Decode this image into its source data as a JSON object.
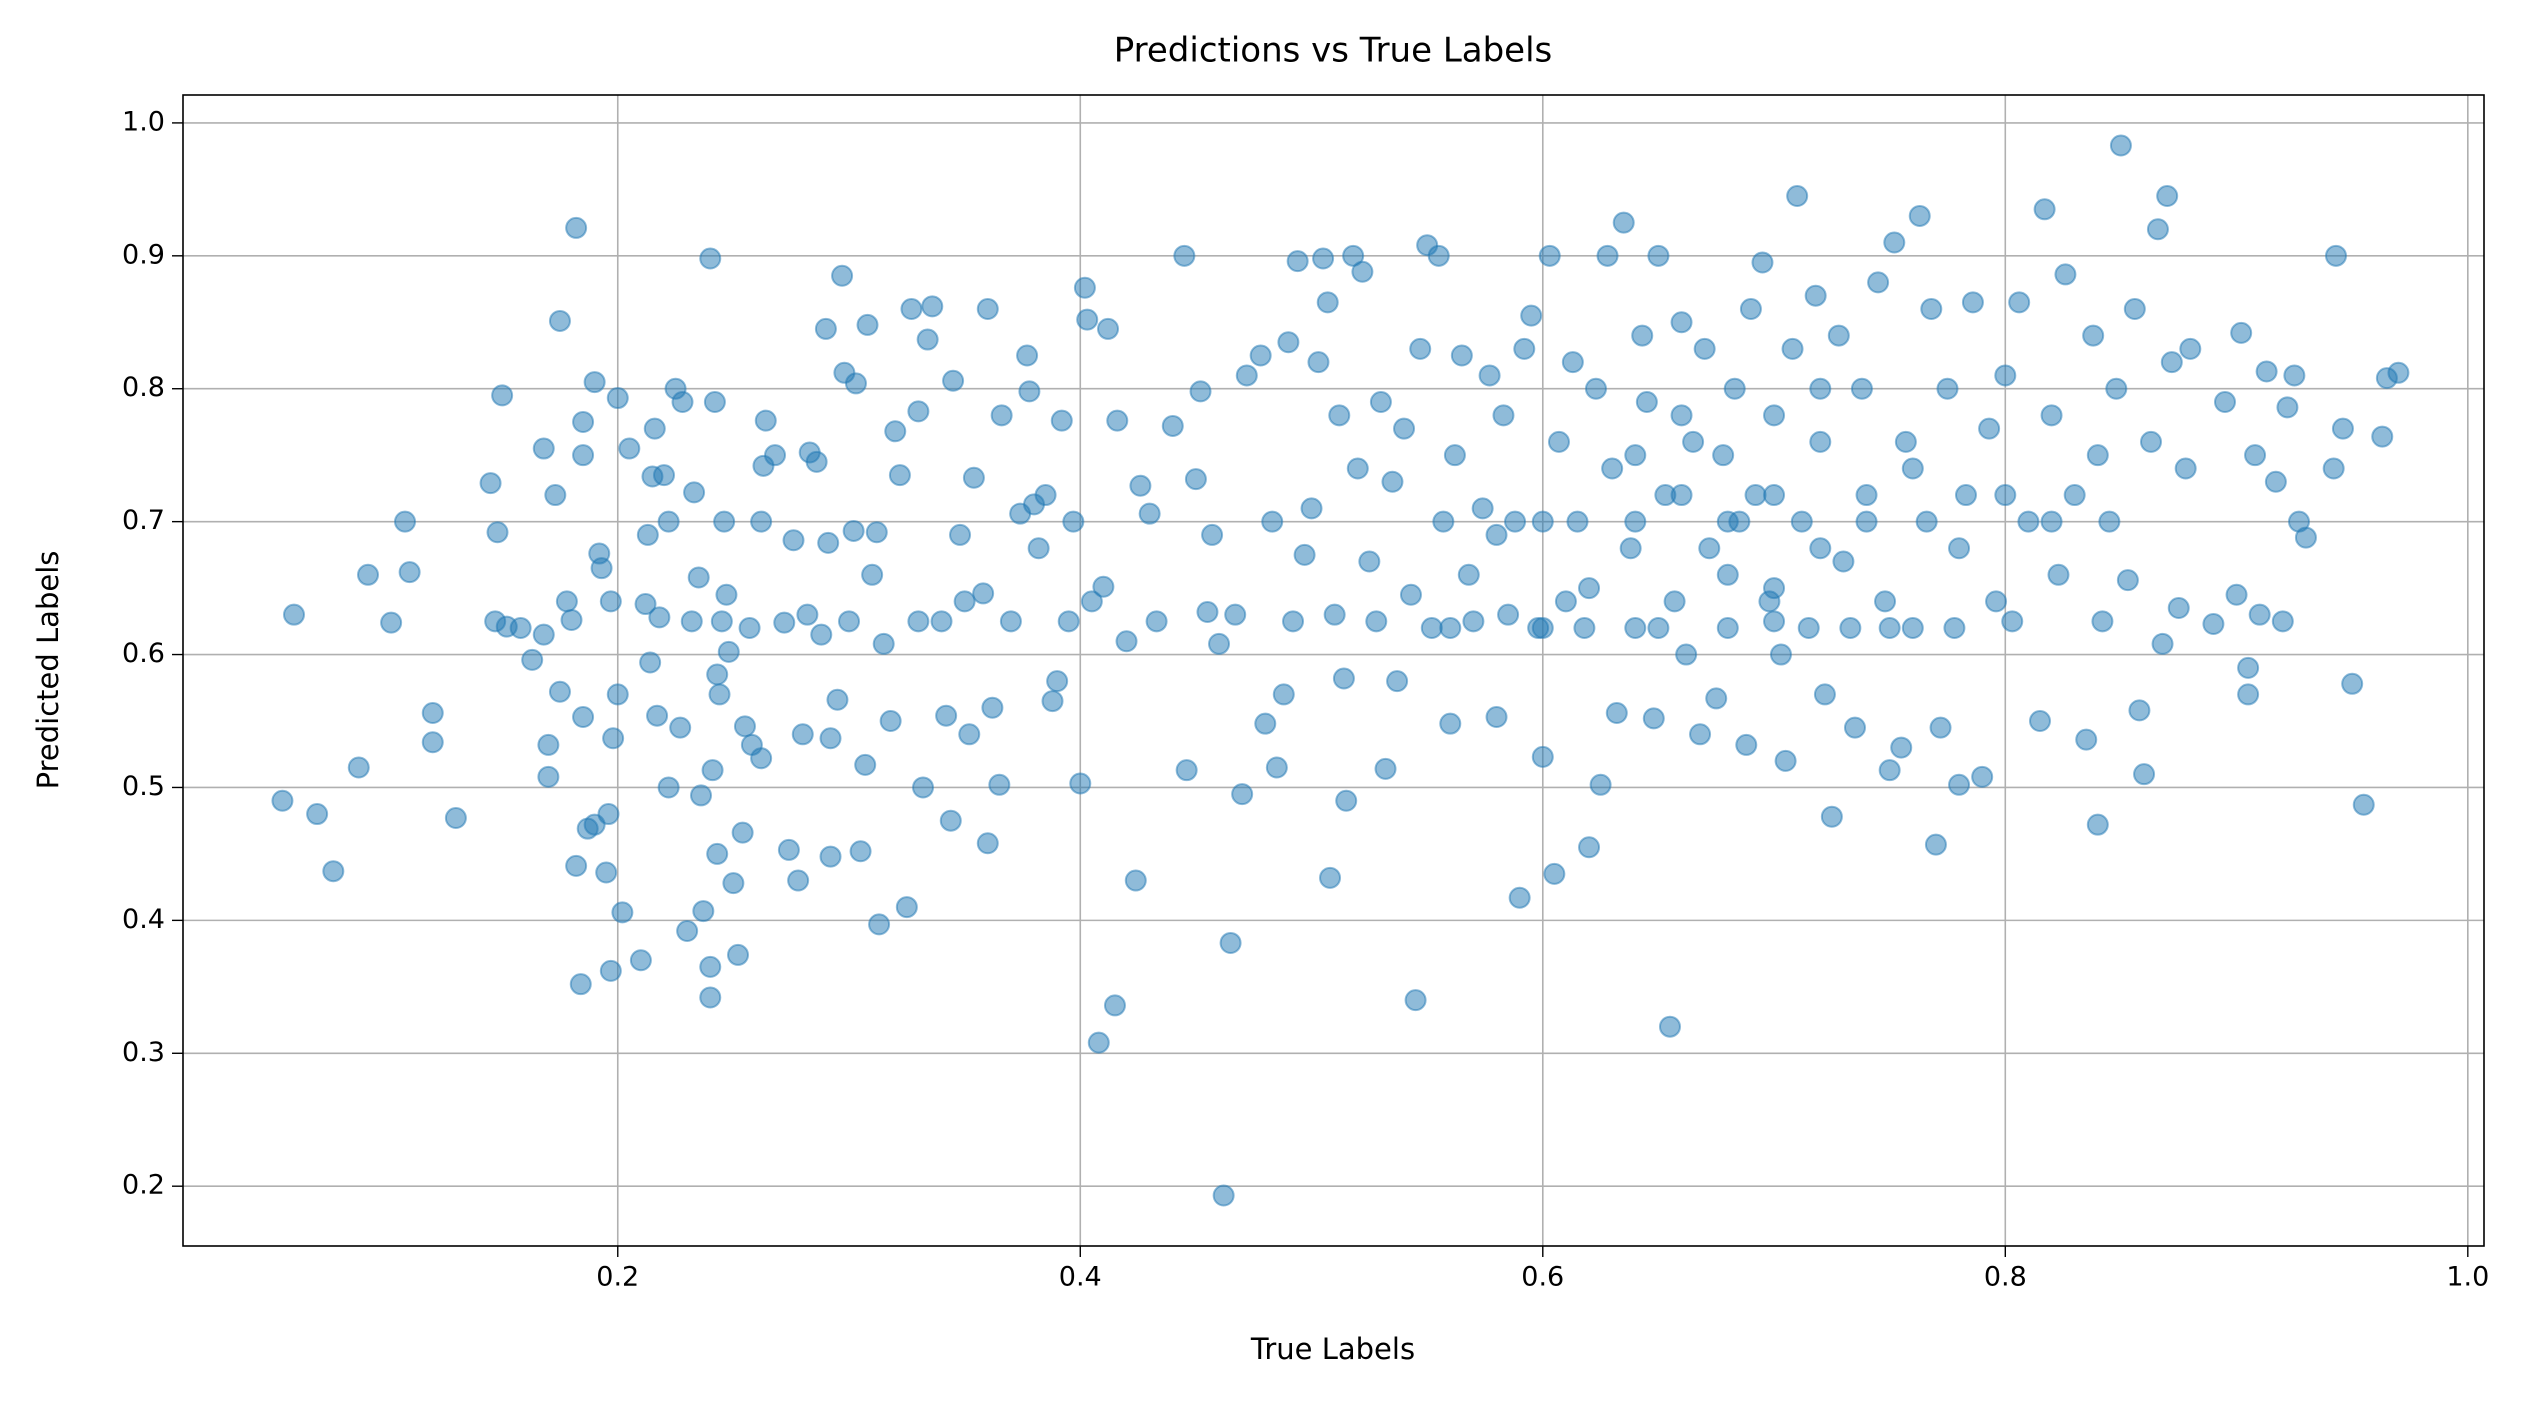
{
  "chart_data": {
    "type": "scatter",
    "title": "Predictions vs True Labels",
    "x_label": "True Labels",
    "y_label": "Predicted Labels",
    "color": "#1f77b4",
    "grid": true,
    "xlim": [
      0.012,
      1.007
    ],
    "ylim": [
      0.155,
      1.021
    ],
    "xticks": [
      0.2,
      0.4,
      0.6,
      0.8,
      {
        "value": 1,
        "label": "1.0"
      }
    ],
    "yticks": [
      0.2,
      0.3,
      0.4,
      0.5,
      0.6,
      0.7,
      0.8,
      0.9,
      {
        "value": 1,
        "label": "1.0"
      }
    ],
    "x": [
      0.055,
      0.06,
      0.07,
      0.077,
      0.088,
      0.092,
      0.102,
      0.108,
      0.11,
      0.12,
      0.12,
      0.13,
      0.145,
      0.147,
      0.148,
      0.15,
      0.152,
      0.158,
      0.163,
      0.168,
      0.168,
      0.17,
      0.17,
      0.173,
      0.175,
      0.175,
      0.178,
      0.18,
      0.182,
      0.182,
      0.184,
      0.185,
      0.185,
      0.185,
      0.187,
      0.19,
      0.19,
      0.192,
      0.193,
      0.195,
      0.196,
      0.197,
      0.197,
      0.198,
      0.2,
      0.2,
      0.202,
      0.205,
      0.21,
      0.212,
      0.213,
      0.214,
      0.215,
      0.216,
      0.217,
      0.218,
      0.22,
      0.222,
      0.222,
      0.225,
      0.227,
      0.228,
      0.23,
      0.232,
      0.233,
      0.235,
      0.236,
      0.237,
      0.24,
      0.24,
      0.24,
      0.241,
      0.242,
      0.243,
      0.243,
      0.244,
      0.245,
      0.246,
      0.247,
      0.248,
      0.25,
      0.252,
      0.254,
      0.255,
      0.257,
      0.258,
      0.262,
      0.262,
      0.263,
      0.264,
      0.268,
      0.272,
      0.274,
      0.276,
      0.278,
      0.28,
      0.282,
      0.283,
      0.286,
      0.288,
      0.29,
      0.291,
      0.292,
      0.292,
      0.295,
      0.297,
      0.298,
      0.3,
      0.302,
      0.303,
      0.305,
      0.307,
      0.308,
      0.31,
      0.312,
      0.313,
      0.315,
      0.318,
      0.32,
      0.322,
      0.325,
      0.327,
      0.33,
      0.33,
      0.332,
      0.334,
      0.336,
      0.34,
      0.342,
      0.344,
      0.345,
      0.348,
      0.35,
      0.352,
      0.354,
      0.358,
      0.36,
      0.36,
      0.362,
      0.365,
      0.366,
      0.37,
      0.374,
      0.377,
      0.378,
      0.38,
      0.382,
      0.385,
      0.388,
      0.39,
      0.392,
      0.395,
      0.397,
      0.4,
      0.402,
      0.403,
      0.405,
      0.408,
      0.41,
      0.412,
      0.415,
      0.416,
      0.42,
      0.424,
      0.426,
      0.43,
      0.433,
      0.44,
      0.445,
      0.446,
      0.45,
      0.452,
      0.455,
      0.457,
      0.46,
      0.462,
      0.465,
      0.467,
      0.47,
      0.472,
      0.478,
      0.48,
      0.483,
      0.485,
      0.488,
      0.49,
      0.492,
      0.494,
      0.497,
      0.5,
      0.503,
      0.505,
      0.507,
      0.508,
      0.51,
      0.512,
      0.514,
      0.515,
      0.518,
      0.52,
      0.522,
      0.525,
      0.528,
      0.53,
      0.532,
      0.535,
      0.537,
      0.54,
      0.543,
      0.545,
      0.547,
      0.55,
      0.552,
      0.555,
      0.557,
      0.56,
      0.562,
      0.565,
      0.568,
      0.57,
      0.574,
      0.577,
      0.58,
      0.583,
      0.585,
      0.588,
      0.59,
      0.592,
      0.595,
      0.598,
      0.6,
      0.603,
      0.605,
      0.607,
      0.61,
      0.613,
      0.615,
      0.618,
      0.62,
      0.623,
      0.625,
      0.628,
      0.63,
      0.632,
      0.635,
      0.638,
      0.64,
      0.643,
      0.645,
      0.648,
      0.65,
      0.653,
      0.655,
      0.657,
      0.66,
      0.662,
      0.665,
      0.668,
      0.67,
      0.672,
      0.675,
      0.678,
      0.68,
      0.683,
      0.685,
      0.688,
      0.69,
      0.692,
      0.695,
      0.698,
      0.7,
      0.703,
      0.705,
      0.708,
      0.71,
      0.712,
      0.715,
      0.718,
      0.72,
      0.722,
      0.725,
      0.728,
      0.73,
      0.733,
      0.735,
      0.738,
      0.74,
      0.745,
      0.748,
      0.75,
      0.752,
      0.755,
      0.757,
      0.76,
      0.763,
      0.766,
      0.768,
      0.77,
      0.772,
      0.775,
      0.778,
      0.78,
      0.783,
      0.786,
      0.79,
      0.793,
      0.796,
      0.8,
      0.803,
      0.806,
      0.81,
      0.815,
      0.817,
      0.82,
      0.823,
      0.826,
      0.83,
      0.835,
      0.838,
      0.84,
      0.842,
      0.845,
      0.848,
      0.85,
      0.853,
      0.856,
      0.858,
      0.86,
      0.863,
      0.866,
      0.868,
      0.87,
      0.872,
      0.875,
      0.878,
      0.88,
      0.89,
      0.895,
      0.9,
      0.902,
      0.905,
      0.905,
      0.908,
      0.91,
      0.913,
      0.917,
      0.92,
      0.922,
      0.925,
      0.927,
      0.93,
      0.942,
      0.943,
      0.946,
      0.95,
      0.955,
      0.963,
      0.965,
      0.97,
      0.6,
      0.62,
      0.64,
      0.66,
      0.68,
      0.7,
      0.72,
      0.74,
      0.76,
      0.78,
      0.66,
      0.7,
      0.72,
      0.68,
      0.64,
      0.58,
      0.56,
      0.6,
      0.65,
      0.7,
      0.75,
      0.8,
      0.82,
      0.84
    ],
    "values": [
      0.49,
      0.63,
      0.48,
      0.437,
      0.515,
      0.66,
      0.624,
      0.7,
      0.662,
      0.556,
      0.534,
      0.477,
      0.729,
      0.625,
      0.692,
      0.795,
      0.621,
      0.62,
      0.596,
      0.755,
      0.615,
      0.532,
      0.508,
      0.72,
      0.851,
      0.572,
      0.64,
      0.626,
      0.921,
      0.441,
      0.352,
      0.553,
      0.75,
      0.775,
      0.469,
      0.805,
      0.472,
      0.676,
      0.665,
      0.436,
      0.48,
      0.362,
      0.64,
      0.537,
      0.57,
      0.793,
      0.406,
      0.755,
      0.37,
      0.638,
      0.69,
      0.594,
      0.734,
      0.77,
      0.554,
      0.628,
      0.735,
      0.5,
      0.7,
      0.8,
      0.545,
      0.79,
      0.392,
      0.625,
      0.722,
      0.658,
      0.494,
      0.407,
      0.898,
      0.342,
      0.365,
      0.513,
      0.79,
      0.45,
      0.585,
      0.57,
      0.625,
      0.7,
      0.645,
      0.602,
      0.428,
      0.374,
      0.466,
      0.546,
      0.62,
      0.532,
      0.7,
      0.522,
      0.742,
      0.776,
      0.75,
      0.624,
      0.453,
      0.686,
      0.43,
      0.54,
      0.63,
      0.752,
      0.745,
      0.615,
      0.845,
      0.684,
      0.537,
      0.448,
      0.566,
      0.885,
      0.812,
      0.625,
      0.693,
      0.804,
      0.452,
      0.517,
      0.848,
      0.66,
      0.692,
      0.397,
      0.608,
      0.55,
      0.768,
      0.735,
      0.41,
      0.86,
      0.625,
      0.783,
      0.5,
      0.837,
      0.862,
      0.625,
      0.554,
      0.475,
      0.806,
      0.69,
      0.64,
      0.54,
      0.733,
      0.646,
      0.86,
      0.458,
      0.56,
      0.502,
      0.78,
      0.625,
      0.706,
      0.825,
      0.798,
      0.713,
      0.68,
      0.72,
      0.565,
      0.58,
      0.776,
      0.625,
      0.7,
      0.503,
      0.876,
      0.852,
      0.64,
      0.308,
      0.651,
      0.845,
      0.336,
      0.776,
      0.61,
      0.43,
      0.727,
      0.706,
      0.625,
      0.772,
      0.9,
      0.513,
      0.732,
      0.798,
      0.632,
      0.69,
      0.608,
      0.193,
      0.383,
      0.63,
      0.495,
      0.81,
      0.825,
      0.548,
      0.7,
      0.515,
      0.57,
      0.835,
      0.625,
      0.896,
      0.675,
      0.71,
      0.82,
      0.898,
      0.865,
      0.432,
      0.63,
      0.78,
      0.582,
      0.49,
      0.9,
      0.74,
      0.888,
      0.67,
      0.625,
      0.79,
      0.514,
      0.73,
      0.58,
      0.77,
      0.645,
      0.34,
      0.83,
      0.908,
      0.62,
      0.9,
      0.7,
      0.548,
      0.75,
      0.825,
      0.66,
      0.625,
      0.71,
      0.81,
      0.553,
      0.78,
      0.63,
      0.7,
      0.417,
      0.83,
      0.855,
      0.62,
      0.523,
      0.9,
      0.435,
      0.76,
      0.64,
      0.82,
      0.7,
      0.62,
      0.455,
      0.8,
      0.502,
      0.9,
      0.74,
      0.556,
      0.925,
      0.68,
      0.62,
      0.84,
      0.79,
      0.552,
      0.9,
      0.72,
      0.32,
      0.64,
      0.85,
      0.6,
      0.76,
      0.54,
      0.83,
      0.68,
      0.567,
      0.75,
      0.62,
      0.8,
      0.7,
      0.532,
      0.86,
      0.72,
      0.895,
      0.64,
      0.78,
      0.6,
      0.52,
      0.83,
      0.945,
      0.7,
      0.62,
      0.87,
      0.76,
      0.57,
      0.478,
      0.84,
      0.67,
      0.62,
      0.545,
      0.8,
      0.72,
      0.88,
      0.64,
      0.513,
      0.91,
      0.53,
      0.76,
      0.62,
      0.93,
      0.7,
      0.86,
      0.457,
      0.545,
      0.8,
      0.62,
      0.502,
      0.72,
      0.865,
      0.508,
      0.77,
      0.64,
      0.81,
      0.625,
      0.865,
      0.7,
      0.55,
      0.935,
      0.78,
      0.66,
      0.886,
      0.72,
      0.536,
      0.84,
      0.472,
      0.625,
      0.7,
      0.8,
      0.983,
      0.656,
      0.86,
      0.558,
      0.51,
      0.76,
      0.92,
      0.608,
      0.945,
      0.82,
      0.635,
      0.74,
      0.83,
      0.623,
      0.79,
      0.645,
      0.842,
      0.59,
      0.57,
      0.75,
      0.63,
      0.813,
      0.73,
      0.625,
      0.786,
      0.81,
      0.7,
      0.688,
      0.74,
      0.9,
      0.77,
      0.578,
      0.487,
      0.764,
      0.808,
      0.812,
      0.7,
      0.65,
      0.75,
      0.72,
      0.7,
      0.72,
      0.68,
      0.7,
      0.74,
      0.68,
      0.78,
      0.65,
      0.8,
      0.66,
      0.7,
      0.69,
      0.62,
      0.62,
      0.62,
      0.625,
      0.62,
      0.72,
      0.7,
      0.75
    ]
  }
}
